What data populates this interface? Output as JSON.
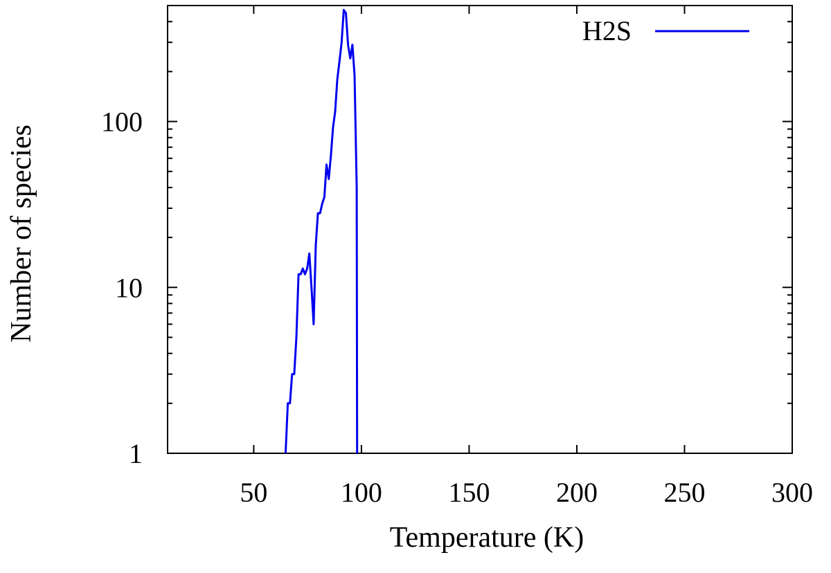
{
  "chart_data": {
    "type": "line",
    "xlabel": "Temperature (K)",
    "ylabel": "Number of species",
    "xlim": [
      10,
      300
    ],
    "ylim": [
      1,
      500
    ],
    "yscale": "log",
    "x_ticks": [
      50,
      100,
      150,
      200,
      250,
      300
    ],
    "y_ticks": [
      1,
      10,
      100
    ],
    "y_tick_labels": [
      "1",
      "10",
      "100"
    ],
    "grid": false,
    "legend_position": "top-right",
    "series": [
      {
        "name": "H2S",
        "color": "#0000ee",
        "x": [
          64.8,
          65.8,
          66.8,
          67.8,
          68.8,
          69.8,
          70.8,
          71.8,
          72.8,
          73.8,
          74.8,
          75.8,
          76.8,
          77.8,
          78.8,
          79.8,
          80.8,
          81.8,
          82.8,
          83.8,
          84.8,
          85.8,
          86.8,
          87.8,
          88.8,
          89.8,
          90.8,
          91.8,
          92.8,
          93.8,
          94.8,
          95.8,
          96.8,
          97.8,
          98.0,
          98.1
        ],
        "values": [
          1,
          2,
          2,
          3,
          3,
          5,
          12,
          12,
          13,
          12,
          13,
          16,
          10,
          6,
          18,
          28,
          28,
          32,
          35,
          55,
          45,
          62,
          92,
          115,
          180,
          230,
          300,
          470,
          450,
          290,
          240,
          290,
          190,
          40,
          1,
          1
        ]
      }
    ]
  }
}
